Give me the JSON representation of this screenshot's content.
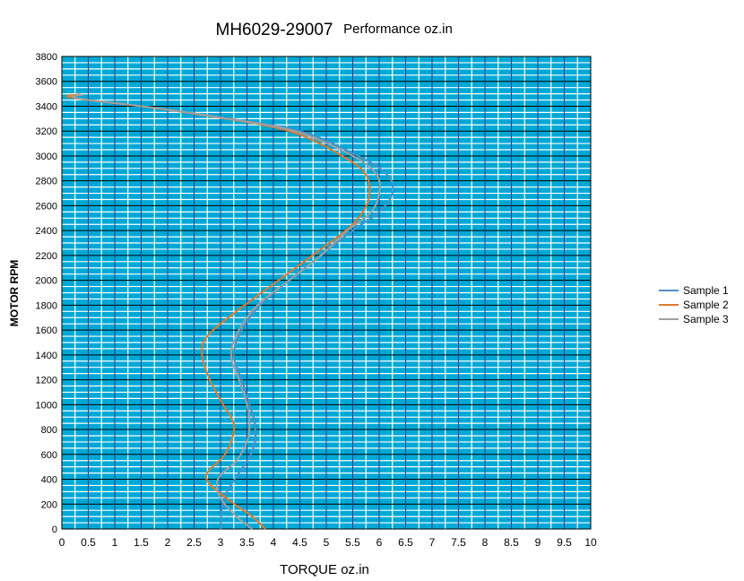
{
  "chart_data": {
    "type": "line",
    "title_main": "MH6029-29007",
    "title_sub": "Performance oz.in",
    "xlabel": "TORQUE  oz.in",
    "ylabel": "MOTOR RPM",
    "xlim": [
      0,
      10
    ],
    "ylim": [
      0,
      3800
    ],
    "x_ticks": [
      "0",
      "0.5",
      "1",
      "1.5",
      "2",
      "2.5",
      "3",
      "3.5",
      "4",
      "4.5",
      "5",
      "5.5",
      "6",
      "6.5",
      "7",
      "7.5",
      "8",
      "8.5",
      "9",
      "9.5",
      "10"
    ],
    "y_ticks": [
      "0",
      "200",
      "400",
      "600",
      "800",
      "1000",
      "1200",
      "1400",
      "1600",
      "1800",
      "2000",
      "2200",
      "2400",
      "2600",
      "2800",
      "3000",
      "3200",
      "3400",
      "3600",
      "3800"
    ],
    "grid": true,
    "legend_position": "right",
    "plot_background": "#00a8d6",
    "series": [
      {
        "name": "Sample 1",
        "color": "#4f8fc6",
        "points": [
          [
            3.0,
            0
          ],
          [
            3.02,
            150
          ],
          [
            3.1,
            280
          ],
          [
            3.3,
            420
          ],
          [
            3.55,
            580
          ],
          [
            3.65,
            700
          ],
          [
            3.65,
            850
          ],
          [
            3.55,
            1000
          ],
          [
            3.4,
            1200
          ],
          [
            3.25,
            1400
          ],
          [
            3.4,
            1600
          ],
          [
            3.75,
            1800
          ],
          [
            4.3,
            2000
          ],
          [
            4.9,
            2200
          ],
          [
            5.5,
            2400
          ],
          [
            6.0,
            2550
          ],
          [
            6.25,
            2700
          ],
          [
            6.15,
            2850
          ],
          [
            5.6,
            3000
          ],
          [
            4.5,
            3200
          ],
          [
            3.0,
            3310
          ],
          [
            1.7,
            3390
          ],
          [
            0.5,
            3450
          ],
          [
            0.15,
            3480
          ],
          [
            0.35,
            3495
          ]
        ]
      },
      {
        "name": "Sample 2",
        "color": "#e07b2c",
        "points": [
          [
            3.85,
            0
          ],
          [
            3.6,
            100
          ],
          [
            3.2,
            220
          ],
          [
            2.8,
            360
          ],
          [
            2.75,
            450
          ],
          [
            3.05,
            580
          ],
          [
            3.2,
            700
          ],
          [
            3.25,
            850
          ],
          [
            3.05,
            1000
          ],
          [
            2.8,
            1200
          ],
          [
            2.65,
            1400
          ],
          [
            2.75,
            1550
          ],
          [
            3.3,
            1750
          ],
          [
            4.1,
            2000
          ],
          [
            4.9,
            2250
          ],
          [
            5.5,
            2450
          ],
          [
            5.8,
            2650
          ],
          [
            5.75,
            2850
          ],
          [
            5.3,
            3000
          ],
          [
            4.3,
            3200
          ],
          [
            2.8,
            3320
          ],
          [
            1.5,
            3400
          ],
          [
            0.5,
            3450
          ],
          [
            0.1,
            3480
          ],
          [
            0.35,
            3495
          ]
        ]
      },
      {
        "name": "Sample 3",
        "color": "#a0a0a0",
        "points": [
          [
            3.6,
            0
          ],
          [
            3.3,
            100
          ],
          [
            3.0,
            250
          ],
          [
            2.95,
            400
          ],
          [
            3.3,
            550
          ],
          [
            3.5,
            700
          ],
          [
            3.55,
            850
          ],
          [
            3.5,
            1000
          ],
          [
            3.35,
            1200
          ],
          [
            3.2,
            1400
          ],
          [
            3.35,
            1600
          ],
          [
            3.7,
            1800
          ],
          [
            4.3,
            2000
          ],
          [
            4.9,
            2200
          ],
          [
            5.4,
            2400
          ],
          [
            5.85,
            2550
          ],
          [
            6.0,
            2700
          ],
          [
            5.95,
            2850
          ],
          [
            5.5,
            3000
          ],
          [
            4.4,
            3200
          ],
          [
            2.9,
            3315
          ],
          [
            1.6,
            3395
          ],
          [
            0.5,
            3450
          ],
          [
            0.2,
            3478
          ],
          [
            0.4,
            3492
          ]
        ]
      }
    ]
  }
}
